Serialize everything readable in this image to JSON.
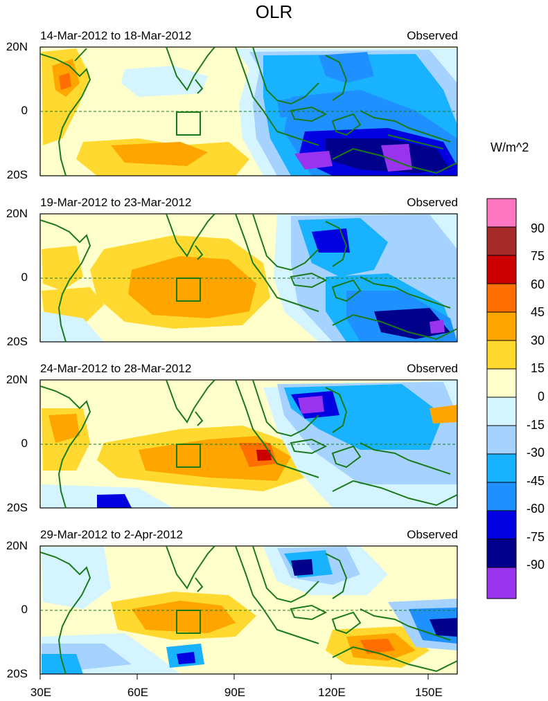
{
  "title": "OLR",
  "units": "W/m^2",
  "panels": [
    {
      "date_range": "14-Mar-2012 to 18-Mar-2012",
      "label": "Observed"
    },
    {
      "date_range": "19-Mar-2012 to 23-Mar-2012",
      "label": "Observed"
    },
    {
      "date_range": "24-Mar-2012 to 28-Mar-2012",
      "label": "Observed"
    },
    {
      "date_range": "29-Mar-2012 to 2-Apr-2012",
      "label": "Observed"
    }
  ],
  "y_labels": [
    "20N",
    "0",
    "20S"
  ],
  "x_labels": [
    "30E",
    "60E",
    "90E",
    "120E",
    "150E"
  ],
  "colorbar": {
    "labels": [
      "90",
      "75",
      "60",
      "45",
      "30",
      "15",
      "0",
      "-15",
      "-30",
      "-45",
      "-60",
      "-75",
      "-90"
    ],
    "colors": [
      "#ff77c0",
      "#a52a2a",
      "#cc0000",
      "#ff6e00",
      "#ffa500",
      "#ffd92f",
      "#ffffcc",
      "#d4f4ff",
      "#a6d2ff",
      "#19b2ff",
      "#1e90ff",
      "#0000e0",
      "#00008b",
      "#9a33ee"
    ]
  },
  "colors": {
    "coast": "#1a7a1a",
    "equator": "#1a7a1a"
  }
}
